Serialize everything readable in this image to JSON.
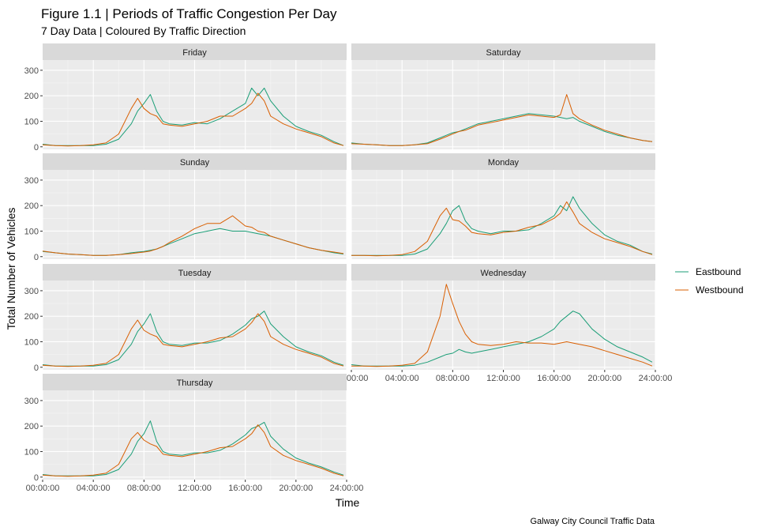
{
  "header": {
    "title": "Figure 1.1 | Periods of Traffic Congestion Per Day",
    "subtitle": "7 Day Data | Coloured By Traffic Direction",
    "caption": "Galway City Council Traffic Data"
  },
  "chart_data": {
    "type": "line",
    "xlabel": "Time",
    "ylabel": "Total Number of Vehicles",
    "xlim": [
      0,
      24
    ],
    "ylim": [
      -10,
      340
    ],
    "x_ticks": [
      0,
      4,
      8,
      12,
      16,
      20,
      24
    ],
    "x_tick_labels": [
      "00:00:00",
      "04:00:00",
      "08:00:00",
      "12:00:00",
      "16:00:00",
      "20:00:00",
      "24:00:00"
    ],
    "y_ticks": [
      0,
      100,
      200,
      300
    ],
    "y_tick_labels": [
      "0",
      "100",
      "200",
      "300"
    ],
    "legend": {
      "placement": "right",
      "entries": [
        "Eastbound",
        "Westbound"
      ]
    },
    "colors": {
      "Eastbound": "#1b9e77",
      "Westbound": "#d95f02"
    },
    "grid": true,
    "x_hours": [
      0,
      1,
      2,
      3,
      4,
      5,
      6,
      7,
      7.5,
      8,
      8.5,
      9,
      9.5,
      10,
      11,
      12,
      13,
      14,
      15,
      16,
      16.5,
      17,
      17.5,
      18,
      19,
      20,
      21,
      22,
      23,
      23.75
    ],
    "panels": [
      {
        "name": "Friday",
        "series": [
          {
            "name": "Eastbound",
            "values": [
              10,
              5,
              5,
              5,
              5,
              10,
              30,
              90,
              140,
              170,
              205,
              140,
              100,
              90,
              85,
              95,
              90,
              110,
              140,
              170,
              230,
              200,
              230,
              180,
              120,
              80,
              60,
              45,
              20,
              5
            ]
          },
          {
            "name": "Westbound",
            "values": [
              8,
              5,
              3,
              5,
              8,
              15,
              50,
              150,
              190,
              150,
              130,
              120,
              90,
              85,
              80,
              90,
              100,
              120,
              120,
              150,
              170,
              210,
              180,
              120,
              90,
              70,
              55,
              40,
              15,
              5
            ]
          }
        ]
      },
      {
        "name": "Saturday",
        "series": [
          {
            "name": "Eastbound",
            "values": [
              15,
              10,
              8,
              5,
              5,
              8,
              15,
              35,
              45,
              55,
              60,
              70,
              80,
              90,
              100,
              110,
              120,
              130,
              125,
              120,
              115,
              110,
              115,
              100,
              80,
              60,
              45,
              35,
              25,
              20
            ]
          },
          {
            "name": "Westbound",
            "values": [
              12,
              10,
              8,
              5,
              5,
              8,
              12,
              30,
              40,
              50,
              60,
              65,
              75,
              85,
              95,
              105,
              115,
              125,
              120,
              115,
              125,
              205,
              130,
              110,
              85,
              65,
              50,
              35,
              25,
              20
            ]
          }
        ]
      },
      {
        "name": "Sunday",
        "series": [
          {
            "name": "Eastbound",
            "values": [
              20,
              15,
              10,
              8,
              5,
              5,
              8,
              15,
              18,
              20,
              25,
              30,
              40,
              50,
              70,
              90,
              100,
              110,
              100,
              100,
              95,
              90,
              85,
              80,
              65,
              50,
              35,
              25,
              15,
              10
            ]
          },
          {
            "name": "Westbound",
            "values": [
              22,
              15,
              10,
              8,
              5,
              5,
              8,
              12,
              15,
              18,
              22,
              30,
              40,
              55,
              80,
              110,
              130,
              130,
              160,
              120,
              115,
              100,
              95,
              80,
              65,
              50,
              35,
              25,
              18,
              12
            ]
          }
        ]
      },
      {
        "name": "Monday",
        "series": [
          {
            "name": "Eastbound",
            "values": [
              5,
              5,
              5,
              5,
              5,
              10,
              30,
              90,
              130,
              180,
              200,
              140,
              110,
              100,
              90,
              100,
              100,
              105,
              130,
              160,
              200,
              180,
              235,
              190,
              130,
              85,
              60,
              45,
              20,
              10
            ]
          },
          {
            "name": "Westbound",
            "values": [
              5,
              5,
              3,
              5,
              8,
              20,
              60,
              160,
              190,
              145,
              140,
              120,
              95,
              90,
              85,
              95,
              100,
              115,
              125,
              150,
              170,
              215,
              175,
              130,
              95,
              70,
              55,
              40,
              20,
              8
            ]
          }
        ]
      },
      {
        "name": "Tuesday",
        "series": [
          {
            "name": "Eastbound",
            "values": [
              10,
              5,
              5,
              5,
              5,
              10,
              30,
              90,
              140,
              170,
              210,
              140,
              100,
              90,
              85,
              95,
              95,
              105,
              130,
              165,
              190,
              200,
              220,
              170,
              120,
              80,
              60,
              45,
              20,
              8
            ]
          },
          {
            "name": "Westbound",
            "values": [
              8,
              5,
              3,
              5,
              8,
              15,
              50,
              150,
              185,
              145,
              130,
              120,
              90,
              85,
              80,
              90,
              100,
              115,
              120,
              150,
              175,
              210,
              180,
              120,
              90,
              70,
              55,
              40,
              15,
              5
            ]
          }
        ]
      },
      {
        "name": "Wednesday",
        "series": [
          {
            "name": "Eastbound",
            "values": [
              10,
              5,
              5,
              5,
              5,
              8,
              20,
              40,
              50,
              55,
              70,
              60,
              55,
              60,
              70,
              80,
              90,
              100,
              120,
              150,
              180,
              200,
              220,
              210,
              150,
              110,
              80,
              60,
              40,
              20
            ]
          },
          {
            "name": "Westbound",
            "values": [
              5,
              5,
              3,
              5,
              8,
              15,
              60,
              200,
              325,
              250,
              180,
              130,
              100,
              90,
              85,
              90,
              100,
              95,
              95,
              90,
              95,
              100,
              95,
              90,
              80,
              65,
              50,
              35,
              20,
              5
            ]
          }
        ]
      },
      {
        "name": "Thursday",
        "series": [
          {
            "name": "Eastbound",
            "values": [
              10,
              5,
              5,
              5,
              5,
              10,
              30,
              90,
              140,
              170,
              220,
              140,
              100,
              90,
              85,
              95,
              95,
              105,
              130,
              165,
              190,
              200,
              215,
              160,
              110,
              75,
              55,
              40,
              20,
              8
            ]
          },
          {
            "name": "Westbound",
            "values": [
              8,
              5,
              3,
              5,
              8,
              15,
              50,
              150,
              175,
              145,
              130,
              120,
              90,
              85,
              80,
              90,
              100,
              115,
              120,
              150,
              170,
              205,
              175,
              120,
              85,
              65,
              50,
              35,
              15,
              5
            ]
          }
        ]
      }
    ]
  }
}
